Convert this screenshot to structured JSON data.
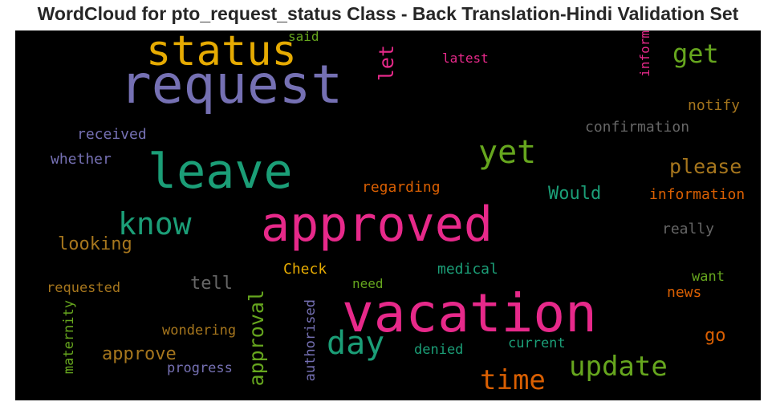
{
  "chart_data": {
    "type": "wordcloud",
    "title": "WordCloud for pto_request_status Class - Back Translation-Hindi Validation Set",
    "background": "#000000",
    "words": [
      {
        "text": "request",
        "color": "#7570b3"
      },
      {
        "text": "status",
        "color": "#e6ab02"
      },
      {
        "text": "vacation",
        "color": "#e7298a"
      },
      {
        "text": "approved",
        "color": "#e7298a"
      },
      {
        "text": "leave",
        "color": "#1b9e77"
      },
      {
        "text": "yet",
        "color": "#66a61e"
      },
      {
        "text": "day",
        "color": "#1b9e77"
      },
      {
        "text": "know",
        "color": "#1b9e77"
      },
      {
        "text": "update",
        "color": "#66a61e"
      },
      {
        "text": "time",
        "color": "#d95f02"
      },
      {
        "text": "get",
        "color": "#66a61e"
      },
      {
        "text": "approval",
        "color": "#66a61e",
        "rotated": true
      },
      {
        "text": "let",
        "color": "#e7298a",
        "rotated": true
      },
      {
        "text": "please",
        "color": "#a6761d"
      },
      {
        "text": "Would",
        "color": "#1b9e77"
      },
      {
        "text": "approve",
        "color": "#a6761d"
      },
      {
        "text": "looking",
        "color": "#a6761d"
      },
      {
        "text": "tell",
        "color": "#666666"
      },
      {
        "text": "go",
        "color": "#d95f02"
      },
      {
        "text": "confirmation",
        "color": "#666666"
      },
      {
        "text": "information",
        "color": "#d95f02"
      },
      {
        "text": "regarding",
        "color": "#d95f02"
      },
      {
        "text": "received",
        "color": "#7570b3"
      },
      {
        "text": "whether",
        "color": "#7570b3"
      },
      {
        "text": "notify",
        "color": "#a6761d"
      },
      {
        "text": "inform",
        "color": "#e7298a",
        "rotated": true
      },
      {
        "text": "latest",
        "color": "#e7298a"
      },
      {
        "text": "said",
        "color": "#66a61e"
      },
      {
        "text": "really",
        "color": "#666666"
      },
      {
        "text": "Check",
        "color": "#e6ab02"
      },
      {
        "text": "medical",
        "color": "#1b9e77"
      },
      {
        "text": "requested",
        "color": "#a6761d"
      },
      {
        "text": "need",
        "color": "#66a61e"
      },
      {
        "text": "want",
        "color": "#66a61e"
      },
      {
        "text": "news",
        "color": "#d95f02"
      },
      {
        "text": "maternity",
        "color": "#66a61e",
        "rotated": true
      },
      {
        "text": "authorised",
        "color": "#7570b3",
        "rotated": true
      },
      {
        "text": "wondering",
        "color": "#a6761d"
      },
      {
        "text": "denied",
        "color": "#1b9e77"
      },
      {
        "text": "current",
        "color": "#1b9e77"
      },
      {
        "text": "progress",
        "color": "#7570b3"
      }
    ]
  }
}
